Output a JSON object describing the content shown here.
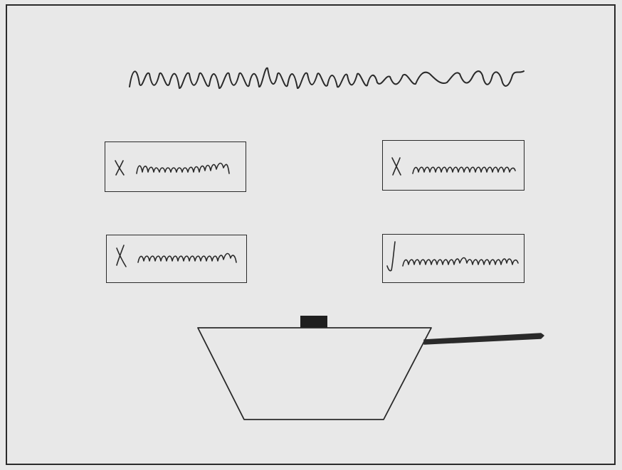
{
  "sketch": {
    "title_placeholder": "squiggle-text",
    "options": [
      {
        "mark": "x",
        "state": "incorrect",
        "label_placeholder": "squiggle-text"
      },
      {
        "mark": "x",
        "state": "incorrect",
        "label_placeholder": "squiggle-text"
      },
      {
        "mark": "x",
        "state": "incorrect",
        "label_placeholder": "squiggle-text"
      },
      {
        "mark": "check",
        "state": "correct",
        "label_placeholder": "squiggle-text"
      }
    ],
    "illustration": "frying-pan",
    "colors": {
      "background": "#e8e8e8",
      "ink": "#2a2a2a"
    }
  }
}
